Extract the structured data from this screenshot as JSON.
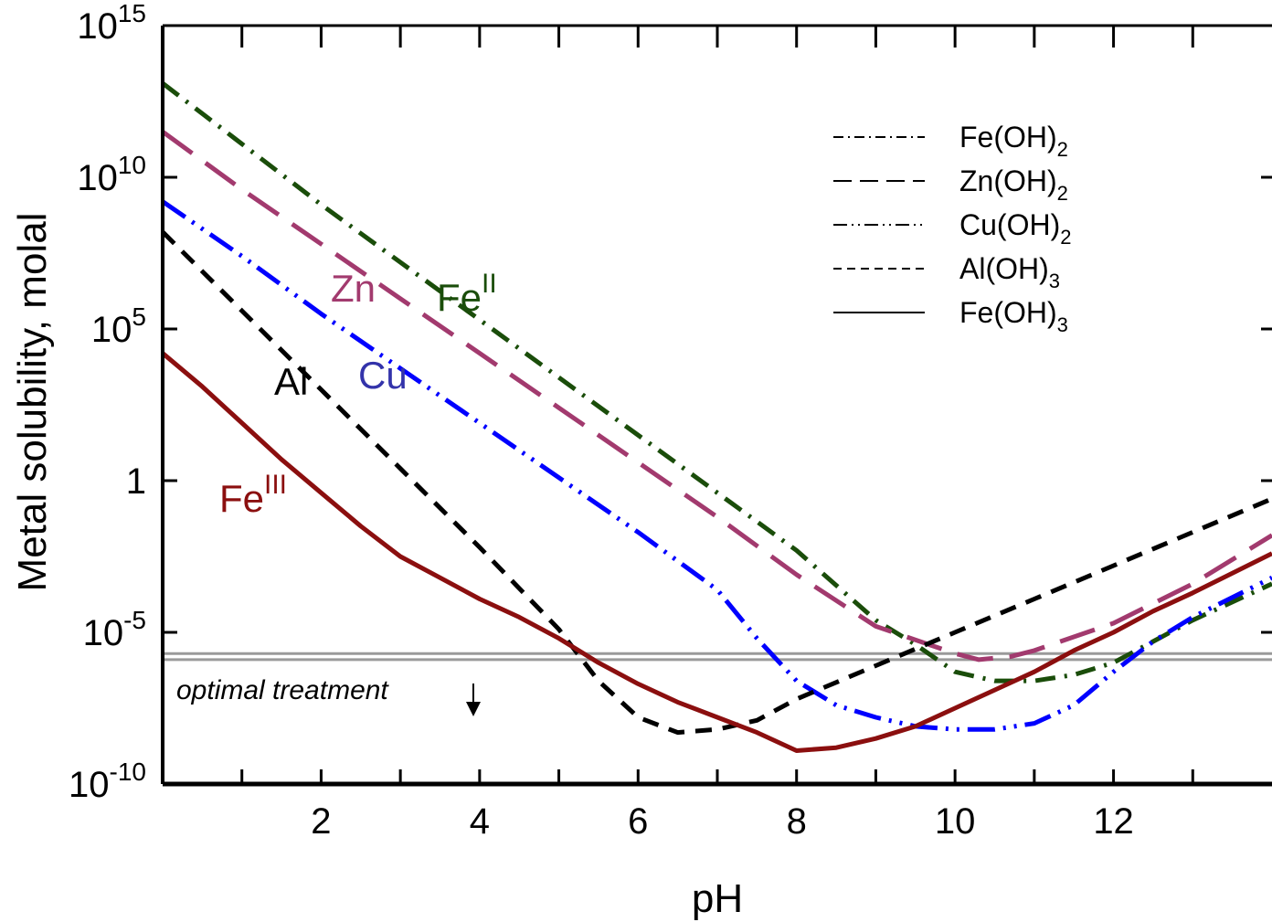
{
  "chart_data": {
    "type": "line",
    "xlabel": "pH",
    "ylabel": "Metal solubility, molal",
    "y_scale": "log",
    "xlim": [
      0,
      14
    ],
    "ylim_exp": [
      -10,
      15
    ],
    "x_ticks": [
      2,
      4,
      6,
      8,
      10,
      12
    ],
    "x_minor_ticks": [
      1,
      3,
      5,
      7,
      9,
      11,
      13
    ],
    "y_ticks": [
      {
        "base": "10",
        "exp": "15",
        "value_exp": 15
      },
      {
        "base": "10",
        "exp": "10",
        "value_exp": 10
      },
      {
        "base": "10",
        "exp": "5",
        "value_exp": 5
      },
      {
        "base": "1",
        "exp": "",
        "value_exp": 0
      },
      {
        "base": "10",
        "exp": "-5",
        "value_exp": -5
      },
      {
        "base": "10",
        "exp": "-10",
        "value_exp": -10
      }
    ],
    "series": [
      {
        "key": "feoh2",
        "base": "Fe(OH)",
        "sub": "2",
        "label_base": "Fe",
        "label_sup": "II",
        "color": "#1a4d0a",
        "dash": "22,10,3,10",
        "points": [
          [
            0,
            13.1
          ],
          [
            1,
            11.1
          ],
          [
            2,
            9.1
          ],
          [
            3,
            7.2
          ],
          [
            4,
            5.3
          ],
          [
            5,
            3.4
          ],
          [
            6,
            1.5
          ],
          [
            7,
            -0.4
          ],
          [
            8,
            -2.3
          ],
          [
            9,
            -4.6
          ],
          [
            9.5,
            -5.4
          ],
          [
            10,
            -6.3
          ],
          [
            10.5,
            -6.6
          ],
          [
            11,
            -6.6
          ],
          [
            11.5,
            -6.4
          ],
          [
            12,
            -6.0
          ],
          [
            12.5,
            -5.3
          ],
          [
            13,
            -4.6
          ],
          [
            14,
            -3.4
          ]
        ]
      },
      {
        "key": "znoh2",
        "base": "Zn(OH)",
        "sub": "2",
        "label_base": "Zn",
        "label_sup": "",
        "color": "#a23a6e",
        "dash": "40,18",
        "points": [
          [
            0,
            11.5
          ],
          [
            1,
            9.6
          ],
          [
            2,
            7.8
          ],
          [
            3,
            6.0
          ],
          [
            4,
            4.2
          ],
          [
            5,
            2.4
          ],
          [
            6,
            0.6
          ],
          [
            7,
            -1.2
          ],
          [
            8,
            -3.1
          ],
          [
            9,
            -4.8
          ],
          [
            10,
            -5.7
          ],
          [
            10.3,
            -5.9
          ],
          [
            10.7,
            -5.8
          ],
          [
            11,
            -5.6
          ],
          [
            12,
            -4.7
          ],
          [
            13,
            -3.4
          ],
          [
            14,
            -1.8
          ]
        ]
      },
      {
        "key": "cuoh2",
        "base": "Cu(OH)",
        "sub": "2",
        "label_base": "Cu",
        "label_sup": "",
        "color": "#0000ff",
        "dash": "30,9,3,9,3,9",
        "points": [
          [
            0,
            9.2
          ],
          [
            1,
            7.4
          ],
          [
            2,
            5.5
          ],
          [
            3,
            3.7
          ],
          [
            4,
            1.9
          ],
          [
            5,
            0.1
          ],
          [
            6,
            -1.7
          ],
          [
            7,
            -3.6
          ],
          [
            7.5,
            -5.2
          ],
          [
            8,
            -6.6
          ],
          [
            8.5,
            -7.4
          ],
          [
            9,
            -7.8
          ],
          [
            9.5,
            -8.1
          ],
          [
            10,
            -8.2
          ],
          [
            10.5,
            -8.2
          ],
          [
            11,
            -8.0
          ],
          [
            11.5,
            -7.4
          ],
          [
            12,
            -6.3
          ],
          [
            12.5,
            -5.3
          ],
          [
            13,
            -4.5
          ],
          [
            14,
            -3.2
          ]
        ]
      },
      {
        "key": "aloh3",
        "base": "Al(OH)",
        "sub": "3",
        "label_base": "Al",
        "label_sup": "",
        "color": "#000000",
        "dash": "18,12",
        "points": [
          [
            0,
            8.2
          ],
          [
            1,
            5.6
          ],
          [
            2,
            3.0
          ],
          [
            3,
            0.4
          ],
          [
            4,
            -2.2
          ],
          [
            5,
            -4.9
          ],
          [
            5.5,
            -6.6
          ],
          [
            6,
            -7.8
          ],
          [
            6.5,
            -8.3
          ],
          [
            7,
            -8.2
          ],
          [
            7.5,
            -7.9
          ],
          [
            8,
            -7.2
          ],
          [
            9,
            -6.1
          ],
          [
            10,
            -5.0
          ],
          [
            11,
            -3.9
          ],
          [
            12,
            -2.8
          ],
          [
            13,
            -1.7
          ],
          [
            14,
            -0.6
          ]
        ]
      },
      {
        "key": "feoh3",
        "base": "Fe(OH)",
        "sub": "3",
        "label_base": "Fe",
        "label_sup": "III",
        "color": "#8b0f0f",
        "dash": "",
        "points": [
          [
            0,
            4.2
          ],
          [
            0.5,
            3.1
          ],
          [
            1,
            1.9
          ],
          [
            1.5,
            0.7
          ],
          [
            2,
            -0.4
          ],
          [
            2.5,
            -1.5
          ],
          [
            3,
            -2.5
          ],
          [
            3.5,
            -3.2
          ],
          [
            4,
            -3.9
          ],
          [
            4.5,
            -4.5
          ],
          [
            5,
            -5.2
          ],
          [
            5.5,
            -6.0
          ],
          [
            6,
            -6.7
          ],
          [
            6.5,
            -7.3
          ],
          [
            7,
            -7.8
          ],
          [
            7.5,
            -8.3
          ],
          [
            8,
            -8.9
          ],
          [
            8.5,
            -8.8
          ],
          [
            9,
            -8.5
          ],
          [
            9.5,
            -8.1
          ],
          [
            10,
            -7.5
          ],
          [
            10.5,
            -6.9
          ],
          [
            11,
            -6.3
          ],
          [
            11.5,
            -5.6
          ],
          [
            12,
            -5.0
          ],
          [
            12.5,
            -4.3
          ],
          [
            13,
            -3.7
          ],
          [
            14,
            -2.4
          ]
        ]
      }
    ],
    "reference_lines_exp": [
      -5.7,
      -5.9
    ],
    "annotation": "optimal treatment",
    "legend_position": "top-right"
  }
}
